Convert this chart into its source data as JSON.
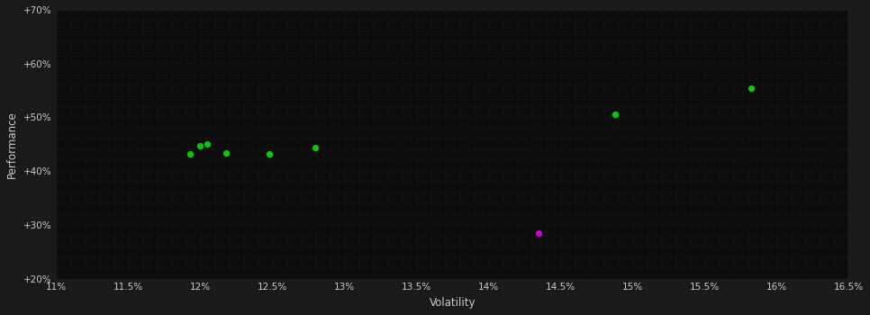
{
  "background_color": "#1a1a1a",
  "plot_bg_color": "#0d0d0d",
  "grid_color": "#2a2a2a",
  "text_color": "#cccccc",
  "xlabel": "Volatility",
  "ylabel": "Performance",
  "xlim": [
    0.11,
    0.165
  ],
  "ylim": [
    0.2,
    0.7
  ],
  "xticks": [
    0.11,
    0.115,
    0.12,
    0.125,
    0.13,
    0.135,
    0.14,
    0.145,
    0.15,
    0.155,
    0.16,
    0.165
  ],
  "yticks": [
    0.2,
    0.3,
    0.4,
    0.5,
    0.6,
    0.7
  ],
  "ytick_labels": [
    "+20%",
    "+30%",
    "+40%",
    "+50%",
    "+60%",
    "+70%"
  ],
  "xtick_labels": [
    "11%",
    "11.5%",
    "12%",
    "12.5%",
    "13%",
    "13.5%",
    "14%",
    "14.5%",
    "15%",
    "15.5%",
    "16%",
    "16.5%"
  ],
  "green_points": [
    [
      0.1193,
      0.432
    ],
    [
      0.12,
      0.447
    ],
    [
      0.1205,
      0.45
    ],
    [
      0.1218,
      0.434
    ],
    [
      0.1248,
      0.432
    ],
    [
      0.128,
      0.443
    ],
    [
      0.1488,
      0.505
    ],
    [
      0.1582,
      0.555
    ]
  ],
  "magenta_points": [
    [
      0.1435,
      0.285
    ]
  ],
  "point_size": 18,
  "green_color": "#00cc00",
  "magenta_color": "#cc00cc",
  "font_size_ticks": 7.5,
  "font_size_axis": 8.5,
  "minor_grid_steps": 5
}
